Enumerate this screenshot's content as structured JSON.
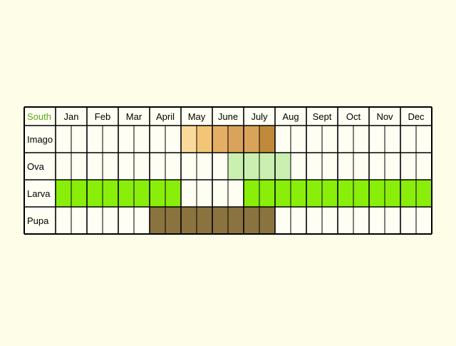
{
  "header_label": "South",
  "header_label_color": "#5aac1a",
  "months": [
    "Jan",
    "Feb",
    "Mar",
    "April",
    "May",
    "June",
    "July",
    "Aug",
    "Sept",
    "Oct",
    "Nov",
    "Dec"
  ],
  "stages": [
    {
      "label": "Imago",
      "periods": [
        {
          "start_month": 5,
          "start_half": 1,
          "end_month": 5,
          "end_half": 1,
          "color": "#f9d48c",
          "opacity": 0.85
        },
        {
          "start_month": 5,
          "start_half": 2,
          "end_month": 5,
          "end_half": 2,
          "color": "#f2c676"
        },
        {
          "start_month": 6,
          "start_half": 1,
          "end_month": 6,
          "end_half": 1,
          "color": "#e5ae65"
        },
        {
          "start_month": 6,
          "start_half": 2,
          "end_month": 7,
          "end_half": 1,
          "color": "#daa35c"
        },
        {
          "start_month": 7,
          "start_half": 2,
          "end_month": 7,
          "end_half": 2,
          "color": "#c08a3a"
        }
      ]
    },
    {
      "label": "Ova",
      "periods": [
        {
          "start_month": 6,
          "start_half": 2,
          "end_month": 8,
          "end_half": 1,
          "color": "#c9f0b0"
        }
      ]
    },
    {
      "label": "Larva",
      "periods": [
        {
          "start_month": 1,
          "start_half": 1,
          "end_month": 4,
          "end_half": 2,
          "color": "#88ee0a"
        },
        {
          "start_month": 7,
          "start_half": 1,
          "end_month": 12,
          "end_half": 2,
          "color": "#88ee0a"
        }
      ]
    },
    {
      "label": "Pupa",
      "periods": [
        {
          "start_month": 4,
          "start_half": 1,
          "end_month": 7,
          "end_half": 2,
          "color": "#8b7340"
        }
      ]
    }
  ],
  "colors": {
    "background": "#fefee8",
    "cell_fill": "#fefef2",
    "grid_line": "#000000",
    "text": "#000000"
  }
}
